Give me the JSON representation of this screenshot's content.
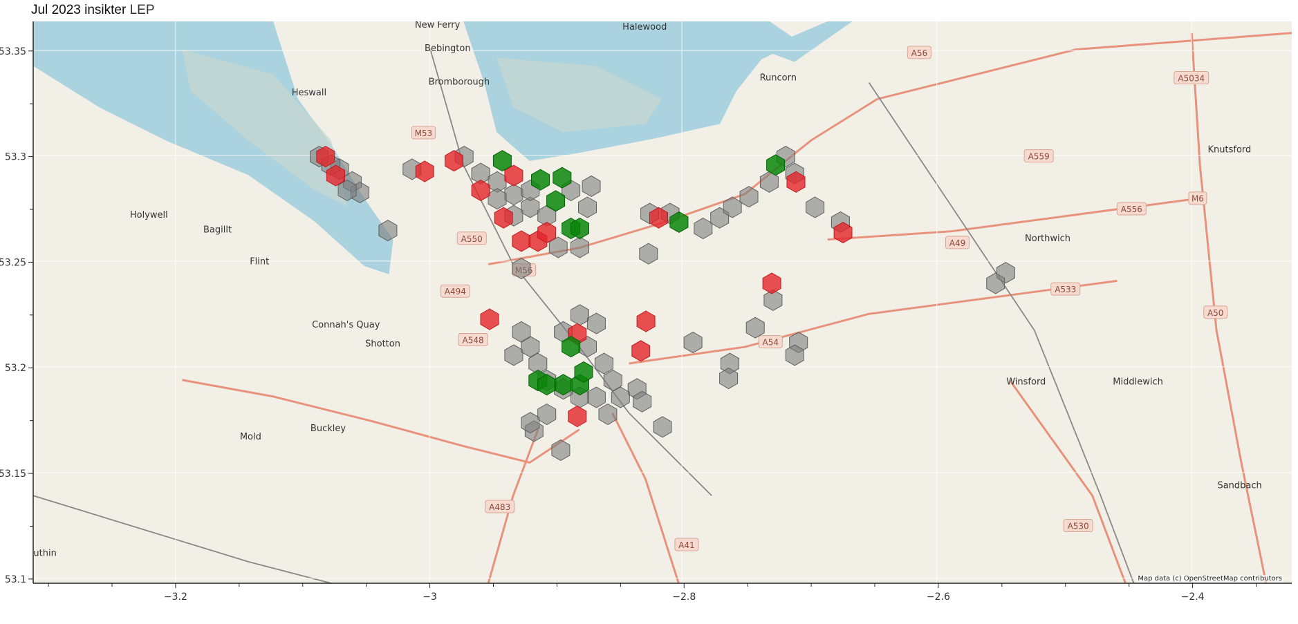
{
  "title": {
    "main": "Jul 2023 insikter",
    "suffix": "LEP"
  },
  "attribution": "Map data (c) OpenStreetMap contributors",
  "colors": {
    "gray": "#7f7f7f",
    "red": "#e3262a",
    "green": "#0b860b",
    "water": "#aad3df",
    "land": "#f1efe6"
  },
  "chart_data": {
    "type": "hexbin-map",
    "xlim": [
      -3.312,
      -2.322
    ],
    "ylim": [
      53.098,
      53.364
    ],
    "xticks": [
      -3.2,
      -3.0,
      -2.8,
      -2.6,
      -2.4
    ],
    "xtick_labels": [
      "−3.2",
      "−3",
      "−2.8",
      "−2.6",
      "−2.4"
    ],
    "yticks": [
      53.1,
      53.15,
      53.2,
      53.25,
      53.3,
      53.35
    ],
    "ytick_labels": [
      "53.1",
      "53.15",
      "53.2",
      "53.25",
      "53.3",
      "53.35"
    ],
    "grid": true,
    "basemap": "OpenStreetMap",
    "hexes": {
      "gray": [
        [
          -3.087,
          53.3
        ],
        [
          -3.071,
          53.294
        ],
        [
          -3.061,
          53.288
        ],
        [
          -3.055,
          53.283
        ],
        [
          -3.065,
          53.284
        ],
        [
          -3.078,
          53.296
        ],
        [
          -3.033,
          53.265
        ],
        [
          -3.014,
          53.294
        ],
        [
          -2.973,
          53.3
        ],
        [
          -2.96,
          53.292
        ],
        [
          -2.947,
          53.288
        ],
        [
          -2.934,
          53.282
        ],
        [
          -2.921,
          53.276
        ],
        [
          -2.908,
          53.272
        ],
        [
          -2.921,
          53.284
        ],
        [
          -2.934,
          53.272
        ],
        [
          -2.947,
          53.28
        ],
        [
          -2.889,
          53.284
        ],
        [
          -2.876,
          53.276
        ],
        [
          -2.873,
          53.286
        ],
        [
          -2.882,
          53.257
        ],
        [
          -2.928,
          53.247
        ],
        [
          -2.899,
          53.257
        ],
        [
          -2.827,
          53.273
        ],
        [
          -2.811,
          53.273
        ],
        [
          -2.785,
          53.266
        ],
        [
          -2.772,
          53.271
        ],
        [
          -2.762,
          53.276
        ],
        [
          -2.749,
          53.281
        ],
        [
          -2.733,
          53.288
        ],
        [
          -2.72,
          53.3
        ],
        [
          -2.713,
          53.292
        ],
        [
          -2.697,
          53.276
        ],
        [
          -2.677,
          53.269
        ],
        [
          -2.828,
          53.254
        ],
        [
          -2.793,
          53.212
        ],
        [
          -2.764,
          53.202
        ],
        [
          -2.765,
          53.195
        ],
        [
          -2.73,
          53.232
        ],
        [
          -2.744,
          53.219
        ],
        [
          -2.71,
          53.212
        ],
        [
          -2.713,
          53.206
        ],
        [
          -2.547,
          53.245
        ],
        [
          -2.555,
          53.24
        ],
        [
          -2.837,
          53.19
        ],
        [
          -2.817,
          53.172
        ],
        [
          -2.897,
          53.161
        ],
        [
          -2.918,
          53.17
        ],
        [
          -2.934,
          53.206
        ],
        [
          -2.921,
          53.21
        ],
        [
          -2.915,
          53.202
        ],
        [
          -2.908,
          53.194
        ],
        [
          -2.895,
          53.217
        ],
        [
          -2.882,
          53.225
        ],
        [
          -2.869,
          53.221
        ],
        [
          -2.876,
          53.21
        ],
        [
          -2.863,
          53.202
        ],
        [
          -2.856,
          53.194
        ],
        [
          -2.869,
          53.186
        ],
        [
          -2.882,
          53.186
        ],
        [
          -2.908,
          53.178
        ],
        [
          -2.921,
          53.174
        ],
        [
          -2.895,
          53.19
        ],
        [
          -2.85,
          53.186
        ],
        [
          -2.86,
          53.178
        ],
        [
          -2.833,
          53.184
        ],
        [
          -2.928,
          53.217
        ]
      ],
      "red": [
        [
          -3.082,
          53.3
        ],
        [
          -3.074,
          53.291
        ],
        [
          -3.004,
          53.293
        ],
        [
          -2.981,
          53.298
        ],
        [
          -2.96,
          53.284
        ],
        [
          -2.942,
          53.271
        ],
        [
          -2.928,
          53.26
        ],
        [
          -2.915,
          53.26
        ],
        [
          -2.908,
          53.264
        ],
        [
          -2.934,
          53.291
        ],
        [
          -2.82,
          53.271
        ],
        [
          -2.731,
          53.24
        ],
        [
          -2.83,
          53.222
        ],
        [
          -2.834,
          53.208
        ],
        [
          -2.884,
          53.216
        ],
        [
          -2.953,
          53.223
        ],
        [
          -2.884,
          53.177
        ],
        [
          -2.712,
          53.288
        ],
        [
          -2.675,
          53.264
        ]
      ],
      "green": [
        [
          -2.943,
          53.298
        ],
        [
          -2.913,
          53.289
        ],
        [
          -2.896,
          53.29
        ],
        [
          -2.901,
          53.279
        ],
        [
          -2.889,
          53.266
        ],
        [
          -2.882,
          53.266
        ],
        [
          -2.804,
          53.269
        ],
        [
          -2.728,
          53.296
        ],
        [
          -2.915,
          53.194
        ],
        [
          -2.895,
          53.192
        ],
        [
          -2.882,
          53.192
        ],
        [
          -2.879,
          53.198
        ],
        [
          -2.889,
          53.21
        ],
        [
          -2.908,
          53.192
        ]
      ]
    }
  },
  "places": [
    {
      "name": "New Ferry",
      "lon": -2.994,
      "lat": 53.361
    },
    {
      "name": "Halewood",
      "lon": -2.831,
      "lat": 53.36
    },
    {
      "name": "Bebington",
      "lon": -2.986,
      "lat": 53.35
    },
    {
      "name": "Bromborough",
      "lon": -2.977,
      "lat": 53.334
    },
    {
      "name": "Heswall",
      "lon": -3.095,
      "lat": 53.329
    },
    {
      "name": "Runcorn",
      "lon": -2.726,
      "lat": 53.336
    },
    {
      "name": "Knutsford",
      "lon": -2.371,
      "lat": 53.302
    },
    {
      "name": "Holywell",
      "lon": -3.221,
      "lat": 53.271
    },
    {
      "name": "Bagillt",
      "lon": -3.167,
      "lat": 53.264
    },
    {
      "name": "Flint",
      "lon": -3.134,
      "lat": 53.249
    },
    {
      "name": "Northwich",
      "lon": -2.514,
      "lat": 53.26
    },
    {
      "name": "Connah's Quay",
      "lon": -3.066,
      "lat": 53.219
    },
    {
      "name": "Shotton",
      "lon": -3.037,
      "lat": 53.21
    },
    {
      "name": "Winsford",
      "lon": -2.531,
      "lat": 53.192
    },
    {
      "name": "Middlewich",
      "lon": -2.443,
      "lat": 53.192
    },
    {
      "name": "Mold",
      "lon": -3.141,
      "lat": 53.166
    },
    {
      "name": "Buckley",
      "lon": -3.08,
      "lat": 53.17
    },
    {
      "name": "Sandbach",
      "lon": -2.363,
      "lat": 53.143
    },
    {
      "name": "Ruthin",
      "lon": -3.305,
      "lat": 53.111
    }
  ],
  "roads": [
    {
      "ref": "M53",
      "lon": -3.005,
      "lat": 53.311
    },
    {
      "ref": "A550",
      "lon": -2.967,
      "lat": 53.261
    },
    {
      "ref": "M56",
      "lon": -2.926,
      "lat": 53.246
    },
    {
      "ref": "A494",
      "lon": -2.98,
      "lat": 53.236
    },
    {
      "ref": "A548",
      "lon": -2.966,
      "lat": 53.213
    },
    {
      "ref": "A56",
      "lon": -2.615,
      "lat": 53.349
    },
    {
      "ref": "A5034",
      "lon": -2.401,
      "lat": 53.337
    },
    {
      "ref": "A559",
      "lon": -2.521,
      "lat": 53.3
    },
    {
      "ref": "M6",
      "lon": -2.396,
      "lat": 53.28
    },
    {
      "ref": "A556",
      "lon": -2.448,
      "lat": 53.275
    },
    {
      "ref": "A49",
      "lon": -2.585,
      "lat": 53.259
    },
    {
      "ref": "A533",
      "lon": -2.5,
      "lat": 53.237
    },
    {
      "ref": "A50",
      "lon": -2.382,
      "lat": 53.226
    },
    {
      "ref": "A54",
      "lon": -2.732,
      "lat": 53.212
    },
    {
      "ref": "A483",
      "lon": -2.945,
      "lat": 53.134
    },
    {
      "ref": "A41",
      "lon": -2.798,
      "lat": 53.116
    },
    {
      "ref": "A530",
      "lon": -2.49,
      "lat": 53.125
    }
  ]
}
